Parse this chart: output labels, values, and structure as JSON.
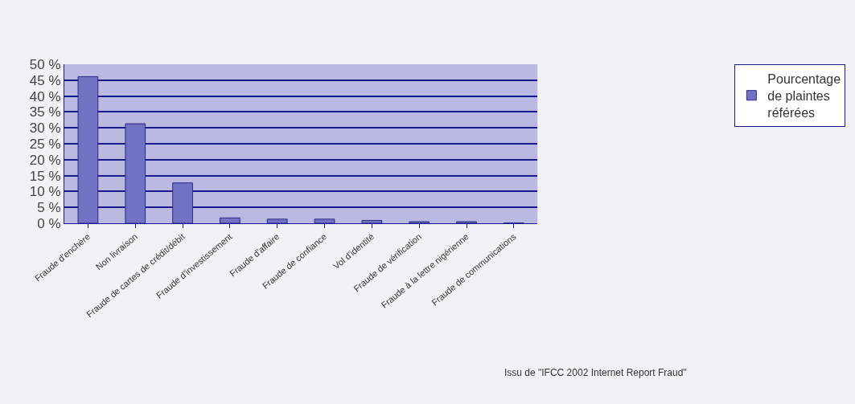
{
  "chart_data": {
    "type": "bar",
    "categories": [
      "Fraude d'enchère",
      "Non livraison",
      "Fraude de cartes de crédit/débit",
      "Fraude d'investissement",
      "Fraude d'affaire",
      "Fraude de confiance",
      "Vol d'identité",
      "Fraude de vérification",
      "Fraude à la lettre nigérienne",
      "Fraude de communications"
    ],
    "series": [
      {
        "name": "Pourcentage de plaintes référées",
        "color": "#7272c4",
        "values": [
          46.1,
          31.3,
          12.7,
          1.7,
          1.3,
          1.3,
          0.9,
          0.5,
          0.5,
          0.1
        ]
      }
    ],
    "ylim": [
      0,
      50
    ],
    "yticks": [
      {
        "value": 0,
        "label": "0 %"
      },
      {
        "value": 5,
        "label": "5 %"
      },
      {
        "value": 10,
        "label": "10 %"
      },
      {
        "value": 15,
        "label": "15 %"
      },
      {
        "value": 20,
        "label": "20 %"
      },
      {
        "value": 25,
        "label": "25 %"
      },
      {
        "value": 30,
        "label": "30 %"
      },
      {
        "value": 35,
        "label": "35 %"
      },
      {
        "value": 40,
        "label": "40 %"
      },
      {
        "value": 45,
        "label": "45 %"
      },
      {
        "value": 50,
        "label": "50 %"
      }
    ],
    "grid": "y",
    "legend": "right",
    "annotations": [
      "Issu de \"IFCC 2002 Internet Report Fraud\""
    ]
  }
}
